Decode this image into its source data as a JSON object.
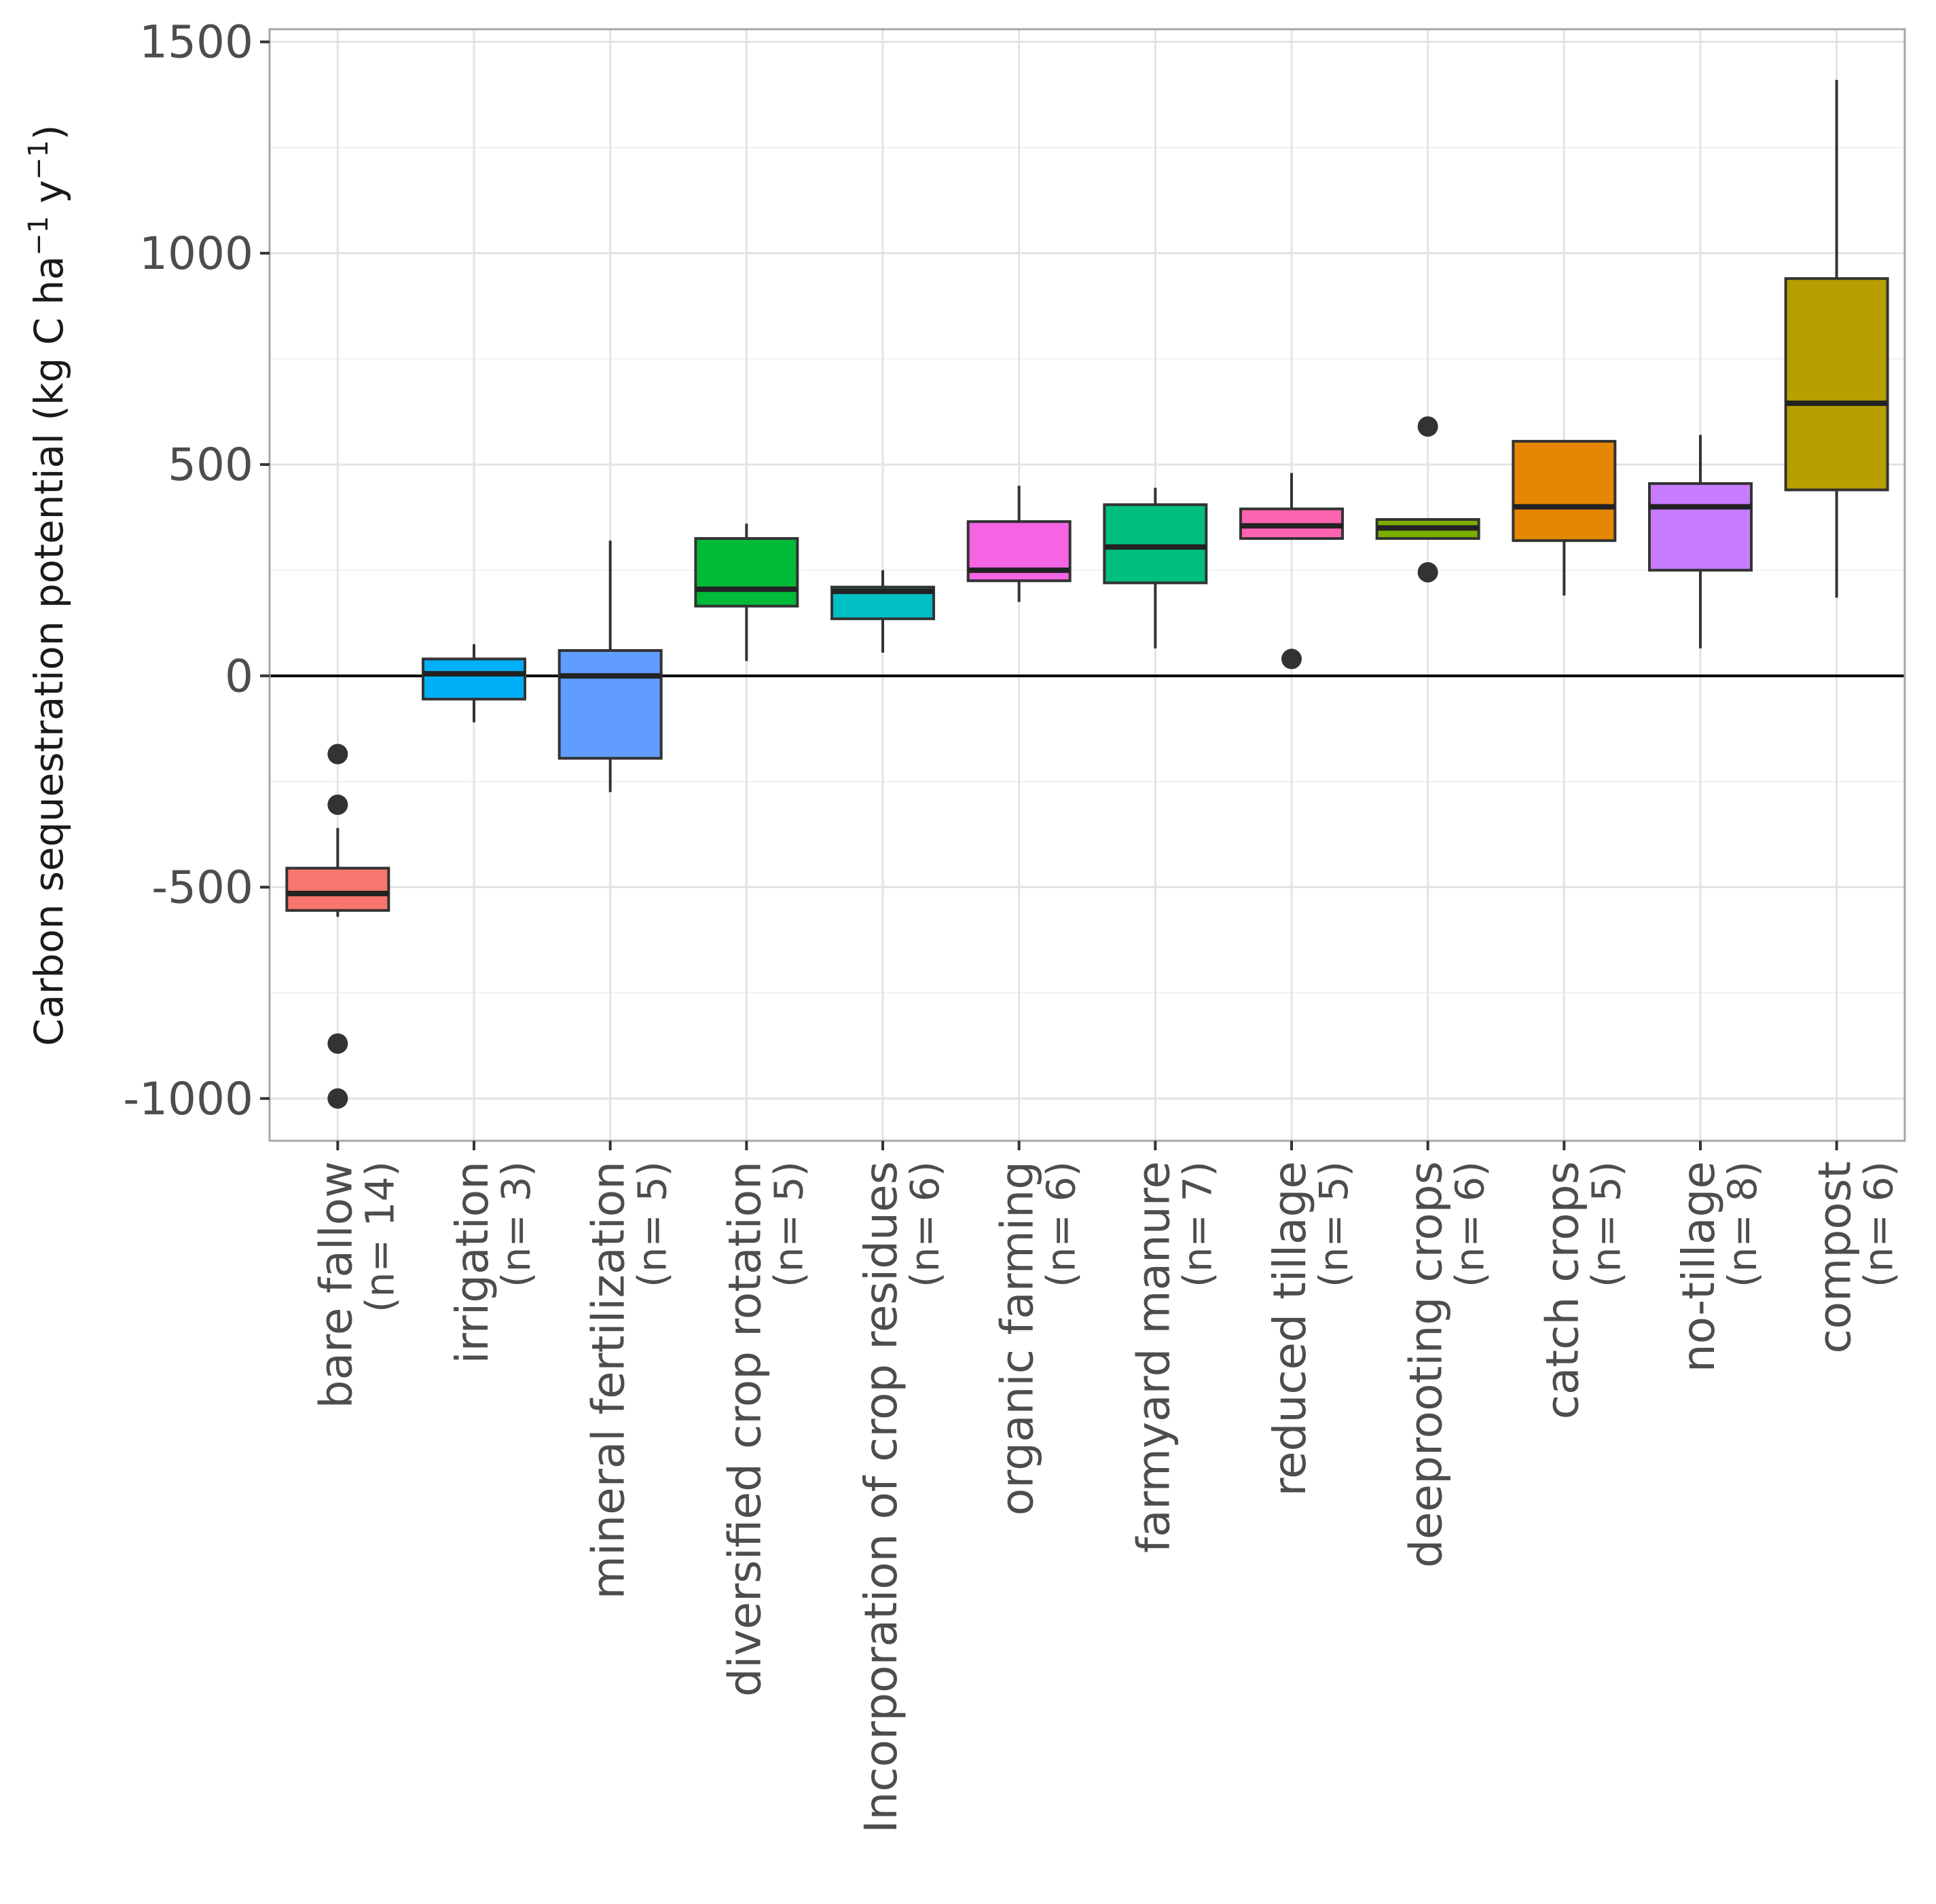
{
  "chart_data": {
    "type": "boxplot",
    "title": "",
    "xlabel": "",
    "ylabel": {
      "main": "Carbon sequestration potential (kg C ha",
      "sup1": "−1",
      "mid": " y",
      "sup2": "−1",
      "end": ")"
    },
    "ylim": [
      -1100,
      1530
    ],
    "yticks": [
      -1000,
      -500,
      0,
      500,
      1000,
      1500
    ],
    "ytick_labels": [
      "-1000",
      "-500",
      "0",
      "500",
      "1000",
      "1500"
    ],
    "minor_yticks": [
      -750,
      -250,
      250,
      750,
      1250
    ],
    "reference_line": 0,
    "grid": true,
    "categories": [
      {
        "label": "bare fallow",
        "n": "(n= 14)",
        "color": "#F8766D",
        "whisker_low": -570,
        "q1": -555,
        "median": -515,
        "q3": -455,
        "whisker_high": -360,
        "outliers": [
          -185,
          -305,
          -870,
          -1000
        ]
      },
      {
        "label": "irrigation",
        "n": "(n= 3)",
        "color": "#00B0F6",
        "whisker_low": -110,
        "q1": -55,
        "median": 5,
        "q3": 40,
        "whisker_high": 75,
        "outliers": []
      },
      {
        "label": "mineral fertilization",
        "n": "(n= 5)",
        "color": "#619CFF",
        "whisker_low": -275,
        "q1": -195,
        "median": 0,
        "q3": 60,
        "whisker_high": 320,
        "outliers": []
      },
      {
        "label": "diversified crop rotation",
        "n": "(n= 5)",
        "color": "#00BA38",
        "whisker_low": 35,
        "q1": 165,
        "median": 205,
        "q3": 325,
        "whisker_high": 360,
        "outliers": []
      },
      {
        "label": "Incorporation of crop residues",
        "n": "(n= 6)",
        "color": "#00BFC4",
        "whisker_low": 55,
        "q1": 135,
        "median": 200,
        "q3": 210,
        "whisker_high": 250,
        "outliers": []
      },
      {
        "label": "organic farming",
        "n": "(n= 6)",
        "color": "#F564E3",
        "whisker_low": 175,
        "q1": 225,
        "median": 250,
        "q3": 365,
        "whisker_high": 450,
        "outliers": []
      },
      {
        "label": "farmyard manure",
        "n": "(n= 7)",
        "color": "#00BF7D",
        "whisker_low": 65,
        "q1": 220,
        "median": 305,
        "q3": 405,
        "whisker_high": 445,
        "outliers": []
      },
      {
        "label": "reduced tillage",
        "n": "(n= 5)",
        "color": "#FF64B0",
        "whisker_low": 325,
        "q1": 325,
        "median": 355,
        "q3": 395,
        "whisker_high": 480,
        "outliers": [
          40
        ]
      },
      {
        "label": "deeprooting crops",
        "n": "(n= 6)",
        "color": "#7CAE00",
        "whisker_low": 325,
        "q1": 325,
        "median": 350,
        "q3": 370,
        "whisker_high": 370,
        "outliers": [
          590,
          245
        ]
      },
      {
        "label": "catch crops",
        "n": "(n= 5)",
        "color": "#E58700",
        "whisker_low": 190,
        "q1": 320,
        "median": 400,
        "q3": 555,
        "whisker_high": 555,
        "outliers": []
      },
      {
        "label": "no-tillage",
        "n": "(n= 8)",
        "color": "#C77CFF",
        "whisker_low": 65,
        "q1": 250,
        "median": 400,
        "q3": 455,
        "whisker_high": 570,
        "outliers": []
      },
      {
        "label": "compost",
        "n": "(n= 6)",
        "color": "#B79F00",
        "whisker_low": 185,
        "q1": 440,
        "median": 645,
        "q3": 940,
        "whisker_high": 1410,
        "outliers": []
      }
    ]
  }
}
